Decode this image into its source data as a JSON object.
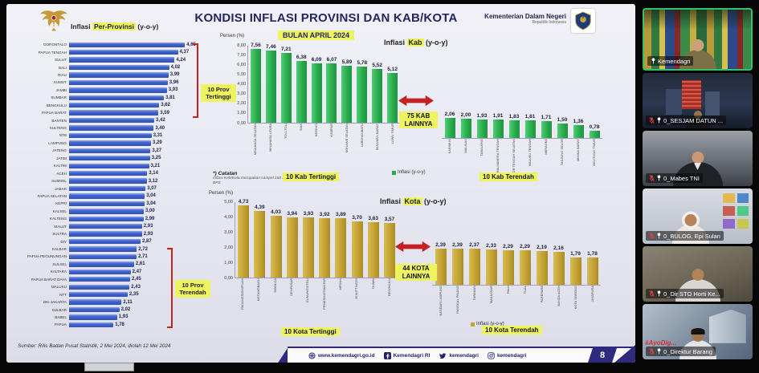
{
  "slide": {
    "header": {
      "left_chart_label": {
        "prefix": "Inflasi ",
        "highlight": "Per-Provinsi",
        "suffix": " (y-o-y)"
      },
      "title": "KONDISI INFLASI PROVINSI DAN KAB/KOTA",
      "subtitle": "BULAN APRIL 2024",
      "ministry_name": "Kementerian Dalam Negeri",
      "ministry_sub": "Republik Indonesia"
    },
    "labels": {
      "persen": "Persen (%)",
      "legend": "Inflasi (y-o-y)",
      "prov_top": "10 Prov Tertinggi",
      "prov_low": "10 Prov Terendah",
      "kab_chart_title": {
        "prefix": "Inflasi ",
        "highlight": "Kab",
        "suffix": " (y-o-y)"
      },
      "kota_chart_title": {
        "prefix": "Inflasi ",
        "highlight": "Kota",
        "suffix": " (y-o-y)"
      },
      "kab_between": "75 KAB LAINNYA",
      "kota_between": "44 KOTA LAINNYA",
      "kab_top": "10 Kab Tertinggi",
      "kab_low": "10 Kab Terendah",
      "kota_top": "10 Kota Tertinggi",
      "kota_low": "10 Kota Terendah",
      "catatan_title": "*) Catatan",
      "catatan_body": "Inflasi Kab/Kota merupakan sampel 150 IHK BPS"
    },
    "footer": {
      "source": "Sumber: Rilis Badan Pusat Statistik, 2 Mei 2024, diolah 12 Mei 2024",
      "website": "www.kemendagri.go.id",
      "facebook": "Kemendagri RI",
      "twitter": "kemendagri",
      "instagram": "kemendagri",
      "page_number": "8"
    },
    "colors": {
      "province_bar": "#4164cc",
      "kab_bar": "#27a94a",
      "kota_bar": "#c2a032",
      "highlight": "#edf45f",
      "accent_red": "#c22222",
      "footer_purple": "#2e2a7e"
    }
  },
  "chart_data": [
    {
      "type": "bar",
      "orientation": "horizontal",
      "title": "Inflasi Per-Provinsi (y-o-y) Bulan April 2024",
      "unit": "Persen (%)",
      "categories": [
        "GORONTALO",
        "PAPUA TENGAH",
        "SULUT",
        "BALI",
        "RIAU",
        "SUMUT",
        "JAMBI",
        "SUMBAR",
        "BENGKULU",
        "PAPUA BARAT",
        "BANTEN",
        "SULTENG",
        "NTB",
        "LAMPUNG",
        "JATENG",
        "JATIM",
        "KALTIM",
        "ACEH",
        "SUMSEL",
        "JABAR",
        "PAPUA SELATAN",
        "KEPRI",
        "KALSEL",
        "KALTENG",
        "MALUT",
        "SULTRA",
        "DIY",
        "KALBAR",
        "PAPUA PEGUNUNGAN",
        "SULSEL",
        "KALTARA",
        "PAPUA BARAT DAYA",
        "MALUKU",
        "NTT",
        "DKI JAKARTA",
        "SULBAR",
        "BABEL",
        "PAPUA"
      ],
      "values": [
        4.65,
        4.37,
        4.24,
        4.02,
        3.99,
        3.96,
        3.93,
        3.81,
        3.62,
        3.59,
        3.42,
        3.4,
        3.31,
        3.29,
        3.27,
        3.25,
        3.21,
        3.14,
        3.12,
        3.07,
        3.04,
        3.04,
        3.0,
        2.99,
        2.93,
        2.93,
        2.87,
        2.72,
        2.71,
        2.61,
        2.47,
        2.45,
        2.43,
        2.35,
        2.11,
        2.02,
        1.93,
        1.78
      ]
    },
    {
      "type": "bar",
      "title": "Inflasi Kab (y-o-y) — 10 Kab Tertinggi",
      "ylabel": "Persen (%)",
      "ylim": [
        0,
        8
      ],
      "categories": [
        "MINAHASA SELATAN",
        "MINAHASA UTARA",
        "TOLI-TOLI",
        "SIAK",
        "KERINCI",
        "KAMPAR",
        "KONAWE SELATAN",
        "LABUHANBATU",
        "PASAMAN BARAT",
        "LUWU TIMUR"
      ],
      "values": [
        7.56,
        7.46,
        7.21,
        6.38,
        6.09,
        6.07,
        5.89,
        5.78,
        5.52,
        5.12
      ]
    },
    {
      "type": "bar",
      "title": "Inflasi Kab (y-o-y) — 10 Kab Terendah",
      "ylim": [
        0,
        8
      ],
      "categories": [
        "KARIMUN",
        "MALINAU",
        "TABALONG",
        "HALMAHERA TENGAH",
        "TIMOR TENGAH SELATAN",
        "MALUKU TENGAH",
        "MERAUKE",
        "TANJUNG SELOR",
        "MIMIKA BARAT",
        "BELITUNG TIMUR"
      ],
      "values": [
        2.06,
        2.0,
        1.93,
        1.91,
        1.83,
        1.81,
        1.71,
        1.5,
        1.36,
        0.78
      ]
    },
    {
      "type": "bar",
      "title": "Inflasi Kota (y-o-y) — 10 Kota Tertinggi",
      "ylabel": "Persen (%)",
      "ylim": [
        0,
        5
      ],
      "categories": [
        "PADANGSIDIMPUAN",
        "KOTAMOBAGU",
        "SIBOLGA",
        "DENPASAR",
        "GUNUNGSITOLI",
        "PEMATANGSIANTAR",
        "MEDAN",
        "BUKITTINGGI",
        "DUMAI",
        "BENGKULU"
      ],
      "values": [
        4.73,
        4.39,
        4.03,
        3.94,
        3.93,
        3.92,
        3.89,
        3.7,
        3.63,
        3.57
      ]
    },
    {
      "type": "bar",
      "title": "Inflasi Kota (y-o-y) — 10 Kota Terendah",
      "ylim": [
        0,
        5
      ],
      "categories": [
        "BANDAR LAMPUNG",
        "PANGKAL PINANG",
        "TARAKAN",
        "MAKASSAR",
        "PALU",
        "TUAL",
        "PAREPARE",
        "BANDA ACEH",
        "KOTA SORONG",
        "JAYAPURA"
      ],
      "values": [
        2.39,
        2.39,
        2.37,
        2.33,
        2.29,
        2.29,
        2.19,
        2.16,
        1.79,
        1.78
      ]
    }
  ],
  "meeting": {
    "participants": [
      {
        "name": "Kemendagri",
        "muted": false,
        "pinned": true,
        "active": true,
        "scene": "flags"
      },
      {
        "name": "0_SESJAM DATUN ...",
        "muted": true,
        "pinned": true,
        "active": false,
        "scene": "city"
      },
      {
        "name": "0_Mabes TNI",
        "muted": true,
        "pinned": true,
        "active": false,
        "scene": "mabes"
      },
      {
        "name": "0_BULOG, Epi Sulan",
        "muted": true,
        "pinned": true,
        "active": false,
        "scene": "bulog"
      },
      {
        "name": "0_Dir STO Horti Ke...",
        "muted": true,
        "pinned": true,
        "active": false,
        "scene": "horti"
      },
      {
        "name": "0_Direktur Barang",
        "muted": true,
        "pinned": true,
        "active": false,
        "scene": "building",
        "watermark": "#AyoDig..."
      }
    ]
  }
}
